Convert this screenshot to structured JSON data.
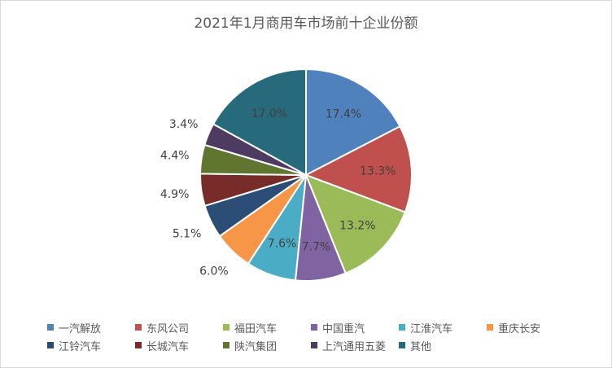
{
  "chart_data": {
    "type": "pie",
    "title": "2021年1月商用车市场前十企业份额",
    "slices": [
      {
        "name": "一汽解放",
        "value": 17.4,
        "label": "17.4%",
        "color": "#4f81bd"
      },
      {
        "name": "东风公司",
        "value": 13.3,
        "label": "13.3%",
        "color": "#c0504d"
      },
      {
        "name": "福田汽车",
        "value": 13.2,
        "label": "13.2%",
        "color": "#9bbb59"
      },
      {
        "name": "中国重汽",
        "value": 7.7,
        "label": "7.7%",
        "color": "#8064a2"
      },
      {
        "name": "江淮汽车",
        "value": 7.6,
        "label": "7.6%",
        "color": "#4bacc6"
      },
      {
        "name": "重庆长安",
        "value": 6.0,
        "label": "6.0%",
        "color": "#f79646"
      },
      {
        "name": "江铃汽车",
        "value": 5.1,
        "label": "5.1%",
        "color": "#2c4d75"
      },
      {
        "name": "长城汽车",
        "value": 4.9,
        "label": "4.9%",
        "color": "#772c2a"
      },
      {
        "name": "陕汽集团",
        "value": 4.4,
        "label": "4.4%",
        "color": "#5f7530"
      },
      {
        "name": "上汽通用五菱",
        "value": 3.4,
        "label": "3.4%",
        "color": "#4d3b62"
      },
      {
        "name": "其他",
        "value": 17.0,
        "label": "17.0%",
        "color": "#276a7c"
      }
    ],
    "legend_position": "bottom"
  }
}
